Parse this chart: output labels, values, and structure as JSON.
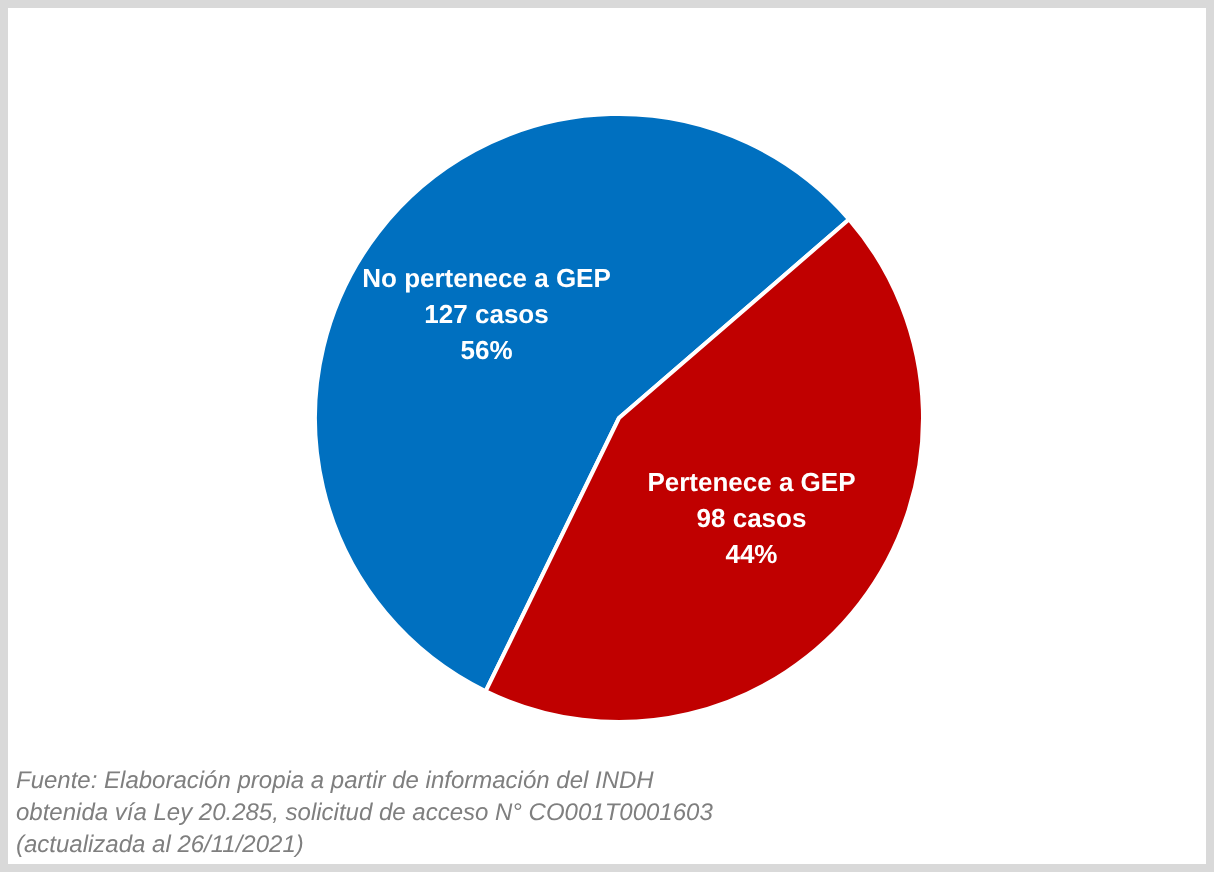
{
  "chart_data": {
    "type": "pie",
    "categories": [
      "No pertenece a GEP",
      "Pertenece a GEP"
    ],
    "values": [
      127,
      98
    ],
    "colors": [
      "#0070c0",
      "#c00000"
    ],
    "value_labels": [
      "127 casos\n56%",
      "98 casos\n44%"
    ],
    "legend": false,
    "annotations": [
      "Fuente: Elaboración propia a partir de información del INDH\nobtenida vía Ley 20.285, solicitud de acceso N° CO001T0001603\n(actualizada al 26/11/2021)"
    ]
  }
}
